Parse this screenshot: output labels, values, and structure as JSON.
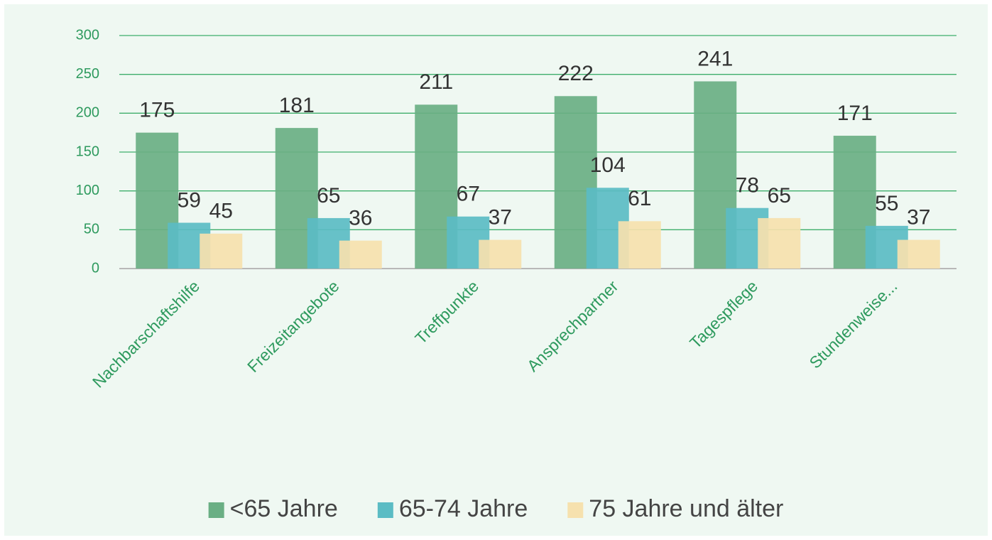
{
  "chart_data": {
    "type": "bar",
    "categories": [
      "Nachbarschaftshilfe",
      "Freizeitangebote",
      "Treffpunkte",
      "Ansprechpartner",
      "Tagespflege",
      "Stundenweise..."
    ],
    "series": [
      {
        "name": "<65 Jahre",
        "color": "#6aaf84",
        "values": [
          175,
          181,
          211,
          222,
          241,
          171
        ]
      },
      {
        "name": "65-74 Jahre",
        "color": "#5bbcc4",
        "values": [
          59,
          65,
          67,
          104,
          78,
          55
        ]
      },
      {
        "name": "75 Jahre und älter",
        "color": "#f6e1ae",
        "values": [
          45,
          36,
          37,
          61,
          65,
          37
        ]
      }
    ],
    "ylim": [
      0,
      300
    ],
    "yticks": [
      0,
      50,
      100,
      150,
      200,
      250,
      300
    ],
    "grid": true,
    "legend": "bottom"
  }
}
